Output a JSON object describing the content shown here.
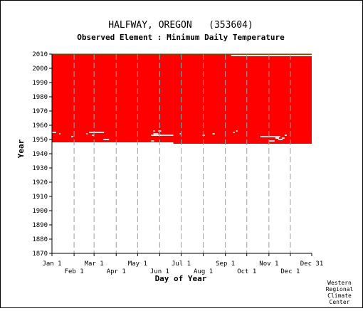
{
  "chart_data": {
    "type": "heatmap",
    "title": "HALFWAY, OREGON   (353604)",
    "subtitle": "Observed Element : Minimum Daily Temperature",
    "xlabel": "Day of Year",
    "ylabel": "Year",
    "xlim": [
      1,
      365
    ],
    "ylim": [
      1870,
      2010
    ],
    "x_ticks": [
      {
        "label": "Jan 1",
        "day": 1
      },
      {
        "label": "Feb 1",
        "day": 32
      },
      {
        "label": "Mar 1",
        "day": 60
      },
      {
        "label": "Apr 1",
        "day": 91
      },
      {
        "label": "May 1",
        "day": 121
      },
      {
        "label": "Jun 1",
        "day": 152
      },
      {
        "label": "Jul 1",
        "day": 182
      },
      {
        "label": "Aug 1",
        "day": 213
      },
      {
        "label": "Sep 1",
        "day": 244
      },
      {
        "label": "Oct 1",
        "day": 274
      },
      {
        "label": "Nov 1",
        "day": 305
      },
      {
        "label": "Dec 1",
        "day": 335
      },
      {
        "label": "Dec 31",
        "day": 365
      }
    ],
    "y_ticks": [
      1870,
      1880,
      1890,
      1900,
      1910,
      1920,
      1930,
      1940,
      1950,
      1960,
      1970,
      1980,
      1990,
      2000,
      2010
    ],
    "data_color": "#ff0000",
    "grid": true,
    "coverage": {
      "start_year_by_day_range": [
        {
          "from_day": 1,
          "to_day": 170,
          "start_year": 1948
        },
        {
          "from_day": 171,
          "to_day": 365,
          "start_year": 1947
        }
      ],
      "end_year": 2010
    },
    "gaps": [
      {
        "year": 1955,
        "from_day": 1,
        "to_day": 6
      },
      {
        "year": 1954,
        "from_day": 11,
        "to_day": 12
      },
      {
        "year": 1952,
        "from_day": 28,
        "to_day": 30
      },
      {
        "year": 1954,
        "from_day": 49,
        "to_day": 50
      },
      {
        "year": 1955,
        "from_day": 53,
        "to_day": 73
      },
      {
        "year": 1953,
        "from_day": 57,
        "to_day": 59
      },
      {
        "year": 1950,
        "from_day": 73,
        "to_day": 80
      },
      {
        "year": 1956,
        "from_day": 143,
        "to_day": 144
      },
      {
        "year": 1954,
        "from_day": 143,
        "to_day": 149
      },
      {
        "year": 1956,
        "from_day": 150,
        "to_day": 153
      },
      {
        "year": 1953,
        "from_day": 140,
        "to_day": 170
      },
      {
        "year": 1949,
        "from_day": 140,
        "to_day": 143
      },
      {
        "year": 1954,
        "from_day": 180,
        "to_day": 181
      },
      {
        "year": 1953,
        "from_day": 212,
        "to_day": 214
      },
      {
        "year": 1954,
        "from_day": 226,
        "to_day": 228
      },
      {
        "year": 1955,
        "from_day": 255,
        "to_day": 256
      },
      {
        "year": 1956,
        "from_day": 259,
        "to_day": 260
      },
      {
        "year": 1952,
        "from_day": 293,
        "to_day": 320
      },
      {
        "year": 1951,
        "from_day": 314,
        "to_day": 318
      },
      {
        "year": 1949,
        "from_day": 305,
        "to_day": 312
      },
      {
        "year": 1950,
        "from_day": 318,
        "to_day": 323
      },
      {
        "year": 1951,
        "from_day": 323,
        "to_day": 326
      },
      {
        "year": 1953,
        "from_day": 327,
        "to_day": 329
      },
      {
        "year": 2009,
        "from_day": 252,
        "to_day": 365
      }
    ],
    "credit": [
      "Western",
      "Regional",
      "Climate",
      "Center"
    ]
  }
}
